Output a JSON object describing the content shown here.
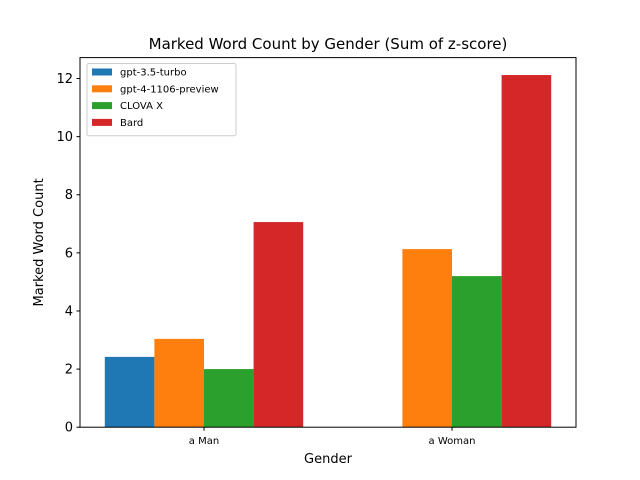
{
  "chart_data": {
    "type": "bar",
    "title": "Marked Word Count by Gender (Sum of z-score)",
    "xlabel": "Gender",
    "ylabel": "Marked Word Count",
    "categories": [
      "a Man",
      "a Woman"
    ],
    "series": [
      {
        "name": "gpt-3.5-turbo",
        "color": "#1f77b4",
        "values": [
          2.42,
          0.0
        ]
      },
      {
        "name": "gpt-4-1106-preview",
        "color": "#ff7f0e",
        "values": [
          3.04,
          6.13
        ]
      },
      {
        "name": "CLOVA X",
        "color": "#2ca02c",
        "values": [
          2.0,
          5.2
        ]
      },
      {
        "name": "Bard",
        "color": "#d62728",
        "values": [
          7.06,
          12.12
        ]
      }
    ],
    "ylim": [
      0,
      12.72
    ],
    "yticks": [
      0,
      2,
      4,
      6,
      8,
      10,
      12
    ],
    "grid": false,
    "legend_position": "top-left"
  }
}
